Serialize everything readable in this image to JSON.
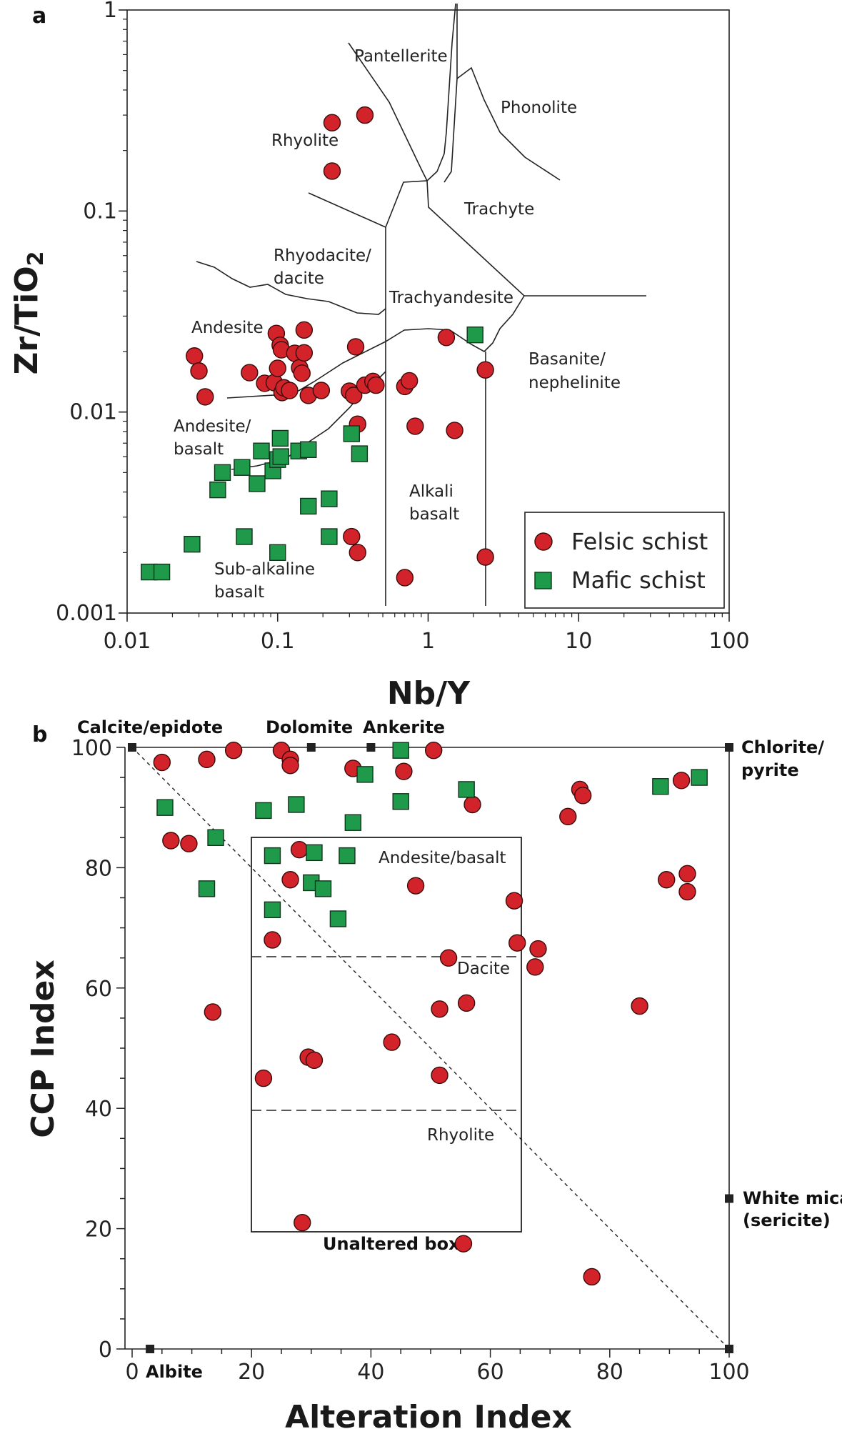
{
  "chart_data": [
    {
      "panel": "a",
      "type": "scatter",
      "xlabel": "Nb/Y",
      "ylabel": "Zr/TiO2",
      "x_scale": "log",
      "y_scale": "log",
      "xlim": [
        0.01,
        100
      ],
      "ylim": [
        0.001,
        1
      ],
      "x_ticks": [
        "0.01",
        "0.1",
        "1",
        "10",
        "100"
      ],
      "y_ticks": [
        "0.001",
        "0.01",
        "0.1",
        "1"
      ],
      "field_labels": [
        "Pantellerite",
        "Phonolite",
        "Rhyolite",
        "Trachyte",
        "Rhyodacite/",
        "dacite",
        "Trachyandesite",
        "Andesite",
        "Basanite/",
        "nephelinite",
        "Andesite/",
        "basalt",
        "Alkali",
        "basalt",
        "Sub-alkaline",
        "basalt"
      ],
      "legend": [
        "Felsic schist",
        "Mafic schist"
      ],
      "series": [
        {
          "name": "Felsic schist",
          "color": "#d3232a",
          "marker": "circle",
          "points": [
            [
              0.23,
              0.275
            ],
            [
              0.38,
              0.3
            ],
            [
              0.23,
              0.158
            ],
            [
              0.028,
              0.019
            ],
            [
              0.03,
              0.016
            ],
            [
              0.033,
              0.0119
            ],
            [
              0.065,
              0.0157
            ],
            [
              0.082,
              0.0139
            ],
            [
              0.095,
              0.014
            ],
            [
              0.098,
              0.0246
            ],
            [
              0.1,
              0.0165
            ],
            [
              0.104,
              0.0215
            ],
            [
              0.106,
              0.0204
            ],
            [
              0.107,
              0.0125
            ],
            [
              0.11,
              0.0132
            ],
            [
              0.12,
              0.0128
            ],
            [
              0.13,
              0.0196
            ],
            [
              0.14,
              0.0166
            ],
            [
              0.145,
              0.0156
            ],
            [
              0.15,
              0.0197
            ],
            [
              0.15,
              0.0256
            ],
            [
              0.16,
              0.0121
            ],
            [
              0.195,
              0.0128
            ],
            [
              0.3,
              0.0127
            ],
            [
              0.32,
              0.0121
            ],
            [
              0.33,
              0.0211
            ],
            [
              0.34,
              0.0087
            ],
            [
              0.38,
              0.0136
            ],
            [
              0.43,
              0.0142
            ],
            [
              0.45,
              0.0136
            ],
            [
              0.7,
              0.0134
            ],
            [
              0.75,
              0.0143
            ],
            [
              0.82,
              0.0085
            ],
            [
              1.32,
              0.0235
            ],
            [
              1.5,
              0.0081
            ],
            [
              2.4,
              0.0162
            ],
            [
              0.31,
              0.0024
            ],
            [
              0.34,
              0.002
            ],
            [
              0.7,
              0.0015
            ],
            [
              2.4,
              0.0019
            ]
          ]
        },
        {
          "name": "Mafic schist",
          "color": "#1f9a4a",
          "marker": "square",
          "points": [
            [
              2.05,
              0.0242
            ],
            [
              0.104,
              0.0074
            ],
            [
              0.078,
              0.0064
            ],
            [
              0.093,
              0.0051
            ],
            [
              0.1,
              0.0058
            ],
            [
              0.105,
              0.006
            ],
            [
              0.138,
              0.0064
            ],
            [
              0.16,
              0.0065
            ],
            [
              0.31,
              0.0078
            ],
            [
              0.35,
              0.0062
            ],
            [
              0.043,
              0.005
            ],
            [
              0.058,
              0.0053
            ],
            [
              0.073,
              0.0044
            ],
            [
              0.04,
              0.0041
            ],
            [
              0.16,
              0.0034
            ],
            [
              0.22,
              0.0037
            ],
            [
              0.06,
              0.0024
            ],
            [
              0.027,
              0.0022
            ],
            [
              0.1,
              0.002
            ],
            [
              0.22,
              0.0024
            ],
            [
              0.014,
              0.0016
            ],
            [
              0.017,
              0.0016
            ]
          ]
        }
      ]
    },
    {
      "panel": "b",
      "type": "scatter",
      "xlabel": "Alteration Index",
      "ylabel": "CCP Index",
      "xlim": [
        0,
        100
      ],
      "ylim": [
        0,
        100
      ],
      "x_ticks": [
        "0",
        "20",
        "40",
        "60",
        "80",
        "100"
      ],
      "y_ticks": [
        "0",
        "20",
        "40",
        "60",
        "80",
        "100"
      ],
      "box_title": "Unaltered box",
      "box_labels": [
        "Andesite/basalt",
        "Dacite",
        "Rhyolite"
      ],
      "mineral_labels": [
        "Calcite/epidote",
        "Dolomite",
        "Ankerite",
        "Chlorite/",
        "pyrite",
        "White mica",
        "(sericite)",
        "Albite"
      ],
      "mineral_points": [
        [
          0,
          100
        ],
        [
          30,
          100
        ],
        [
          40,
          100
        ],
        [
          100,
          100
        ],
        [
          100,
          25
        ],
        [
          3,
          0
        ],
        [
          100,
          0
        ]
      ],
      "series": [
        {
          "name": "Felsic schist",
          "color": "#d3232a",
          "marker": "circle",
          "points": [
            [
              5,
              97.5
            ],
            [
              12.5,
              98
            ],
            [
              17,
              99.5
            ],
            [
              25,
              99.5
            ],
            [
              26.5,
              98
            ],
            [
              26.5,
              97
            ],
            [
              37,
              96.5
            ],
            [
              45.5,
              96
            ],
            [
              50.5,
              99.5
            ],
            [
              57,
              90.5
            ],
            [
              75,
              93
            ],
            [
              75.5,
              92
            ],
            [
              73,
              88.5
            ],
            [
              92,
              94.5
            ],
            [
              6.5,
              84.5
            ],
            [
              9.5,
              84
            ],
            [
              28,
              83
            ],
            [
              26.5,
              78
            ],
            [
              47.5,
              77
            ],
            [
              23.5,
              68
            ],
            [
              64,
              74.5
            ],
            [
              64.5,
              67.5
            ],
            [
              68,
              66.5
            ],
            [
              67.5,
              63.5
            ],
            [
              53,
              65
            ],
            [
              89.5,
              78
            ],
            [
              93,
              79
            ],
            [
              93,
              76
            ],
            [
              13.5,
              56
            ],
            [
              51.5,
              56.5
            ],
            [
              56,
              57.5
            ],
            [
              85,
              57
            ],
            [
              43.5,
              51
            ],
            [
              29.5,
              48.5
            ],
            [
              30.5,
              48
            ],
            [
              22,
              45
            ],
            [
              51.5,
              45.5
            ],
            [
              28.5,
              21
            ],
            [
              55.5,
              17.5
            ],
            [
              77,
              12
            ]
          ]
        },
        {
          "name": "Mafic schist",
          "color": "#1f9a4a",
          "marker": "square",
          "points": [
            [
              45,
              99.5
            ],
            [
              39,
              95.5
            ],
            [
              56,
              93
            ],
            [
              88.5,
              93.5
            ],
            [
              95,
              95
            ],
            [
              5.5,
              90
            ],
            [
              22,
              89.5
            ],
            [
              27.5,
              90.5
            ],
            [
              45,
              91
            ],
            [
              37,
              87.5
            ],
            [
              14,
              85
            ],
            [
              12.5,
              76.5
            ],
            [
              23.5,
              82
            ],
            [
              30.5,
              82.5
            ],
            [
              36,
              82
            ],
            [
              30,
              77.5
            ],
            [
              32,
              76.5
            ],
            [
              34.5,
              71.5
            ],
            [
              23.5,
              73
            ]
          ]
        }
      ]
    }
  ]
}
